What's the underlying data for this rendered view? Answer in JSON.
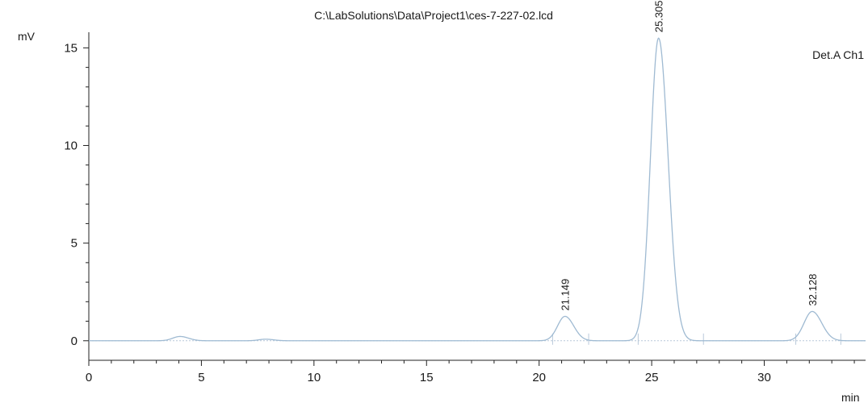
{
  "chart_data": {
    "type": "line",
    "title": "C:\\LabSolutions\\Data\\Project1\\ces-7-227-02.lcd",
    "xlabel": "min",
    "ylabel": "mV",
    "xlim": [
      0,
      34.5
    ],
    "ylim": [
      -1,
      15.8
    ],
    "x_ticks": [
      0,
      5,
      10,
      15,
      20,
      25,
      30
    ],
    "y_ticks": [
      0,
      5,
      10,
      15
    ],
    "grid": false,
    "legend": "top-right",
    "series": [
      {
        "name": "Det.A Ch1",
        "color": "#9fbad2",
        "peaks": [
          {
            "rt": 4.05,
            "height": 0.22,
            "width": 0.32
          },
          {
            "rt": 7.85,
            "height": 0.08,
            "width": 0.3
          },
          {
            "rt": 21.149,
            "height": 1.25,
            "width": 0.33
          },
          {
            "rt": 25.305,
            "height": 15.5,
            "width": 0.36
          },
          {
            "rt": 32.128,
            "height": 1.5,
            "width": 0.36
          }
        ]
      }
    ],
    "annotations": [
      {
        "text": "21.149",
        "x": 21.149,
        "y": 1.25
      },
      {
        "text": "25.305",
        "x": 25.305,
        "y": 15.5
      },
      {
        "text": "32.128",
        "x": 32.128,
        "y": 1.5
      }
    ],
    "baseline_markers": [
      20.6,
      22.2,
      24.4,
      27.3,
      31.4,
      33.4
    ]
  }
}
